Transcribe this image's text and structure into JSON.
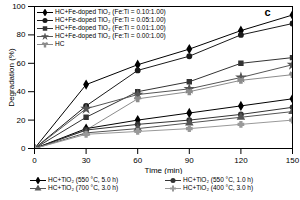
{
  "chart_data": {
    "type": "line",
    "title": "c",
    "x_label": "Time (min)",
    "y_label": "Degradation (%)",
    "x": [
      0,
      30,
      60,
      90,
      120,
      150
    ],
    "xlim": [
      0,
      150
    ],
    "xticks": [
      0,
      30,
      60,
      90,
      120,
      150
    ],
    "ylim": [
      0,
      100
    ],
    "yticks": [
      0,
      20,
      40,
      60,
      80,
      100
    ],
    "grid": false,
    "series": [
      {
        "name": "HC+Fe-doped TiO₂ (Fe:Ti = 0.10:1.00)",
        "color": "#000000",
        "marker": "diamond",
        "legend": "upper left",
        "values": [
          0,
          45,
          59,
          70,
          83,
          94
        ]
      },
      {
        "name": "HC+Fe-doped TiO₂ (Fe:Ti = 0.05:1.00)",
        "color": "#1a1a1a",
        "marker": "circle",
        "legend": "upper left",
        "values": [
          0,
          30,
          55,
          65,
          80,
          88
        ]
      },
      {
        "name": "HC+Fe-doped TiO₂ (Fe:Ti = 0.01:1.00)",
        "color": "#333333",
        "marker": "square",
        "legend": "upper left",
        "values": [
          0,
          22,
          40,
          47,
          60,
          64
        ]
      },
      {
        "name": "HC+Fe-doped TiO₂ (Fe:Ti = 0.00:1.00)",
        "color": "#555555",
        "marker": "star",
        "legend": "upper left",
        "values": [
          0,
          28,
          38,
          42,
          50,
          59
        ]
      },
      {
        "name": "HC",
        "color": "#8c8c8c",
        "marker": "wye",
        "legend": "upper left",
        "values": [
          0,
          13,
          35,
          40,
          48,
          52
        ]
      },
      {
        "name": "HC+TiO₂ (550 °C, 5.0 h)",
        "color": "#000000",
        "marker": "diamond",
        "legend": "bottom",
        "values": [
          0,
          14,
          20,
          25,
          30,
          35
        ]
      },
      {
        "name": "HC+TiO₂ (550 °C, 1.0 h)",
        "color": "#333333",
        "marker": "circle",
        "legend": "bottom",
        "values": [
          0,
          13,
          17,
          20,
          24,
          29
        ]
      },
      {
        "name": "HC+TiO₂ (700 °C, 3.0 h)",
        "color": "#555555",
        "marker": "triangle",
        "legend": "bottom",
        "values": [
          0,
          11,
          14,
          18,
          22,
          26
        ]
      },
      {
        "name": "HC+TiO₂ (400 °C, 3.0 h)",
        "color": "#999999",
        "marker": "cross",
        "legend": "bottom",
        "values": [
          0,
          10,
          12,
          14,
          17,
          20
        ]
      }
    ]
  }
}
